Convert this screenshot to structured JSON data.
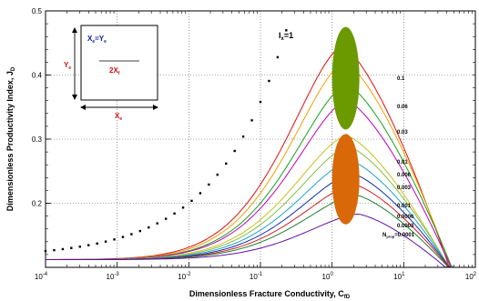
{
  "chart_data": {
    "type": "line",
    "xlabel": "Dimensionless Fracture Conductivity, C",
    "xlabel_sub": "fD",
    "ylabel": "Dimensionless Productivity Index, J",
    "ylabel_sub": "D",
    "x_scale": "log",
    "xlim": [
      0.0001,
      100
    ],
    "ylim": [
      0.1,
      0.5
    ],
    "x_ticks": [
      {
        "base": "10",
        "exp": "-4"
      },
      {
        "base": "10",
        "exp": "-3"
      },
      {
        "base": "10",
        "exp": "-2"
      },
      {
        "base": "10",
        "exp": "-1"
      },
      {
        "base": "10",
        "exp": "0"
      },
      {
        "base": "10",
        "exp": "1"
      },
      {
        "base": "10",
        "exp": "2"
      }
    ],
    "y_ticks": [
      "0.2",
      "0.3",
      "0.4",
      "0.5"
    ],
    "grid": true,
    "dotted_annotation": {
      "label": "I",
      "label_sub": "x",
      "label_suffix": "=1"
    },
    "curve_label_parameter": "N",
    "curve_label_parameter_sub": "prop",
    "series": [
      {
        "label": "0.1",
        "color": "#e01010",
        "peak": 0.445,
        "peak_x": 1.4
      },
      {
        "label": "0.06",
        "color": "#f0a000",
        "peak": 0.42,
        "peak_x": 1.5
      },
      {
        "label": "0.03",
        "color": "#18a018",
        "peak": 0.385,
        "peak_x": 1.6
      },
      {
        "label": "",
        "color": "#c000c0",
        "peak": 0.36,
        "peak_x": 1.6
      },
      {
        "label": "0.01",
        "color": "#c8c020",
        "peak": 0.305,
        "peak_x": 1.6
      },
      {
        "label": "0.006",
        "color": "#80c040",
        "peak": 0.288,
        "peak_x": 1.7
      },
      {
        "label": "0.003",
        "color": "#20a0d0",
        "peak": 0.266,
        "peak_x": 1.8
      },
      {
        "label": "0.001",
        "color": "#1030b0",
        "peak": 0.246,
        "peak_x": 1.9
      },
      {
        "label": "0.0006",
        "color": "#d02020",
        "peak": 0.229,
        "peak_x": 2.0
      },
      {
        "label": "0.0003",
        "color": "#208030",
        "peak": 0.213,
        "peak_x": 2.1
      },
      {
        "label": "=0.0001",
        "color": "#6010a0",
        "peak": 0.183,
        "peak_x": 2.3
      }
    ],
    "markers": [
      {
        "color": "#6a9a00",
        "x": 1.55,
        "y_top": 0.475,
        "y_bottom": 0.315
      },
      {
        "color": "#d86808",
        "x": 1.55,
        "y_top": 0.308,
        "y_bottom": 0.167
      }
    ],
    "inset": {
      "top_label": "X",
      "top_label_sub": "e",
      "top_label_mid": "=Y",
      "top_label_sub2": "e",
      "left_label": "Y",
      "left_label_sub": "e",
      "fracture_label": "2X",
      "fracture_label_sub": "f",
      "bottom_label": "X",
      "bottom_label_sub": "e"
    }
  }
}
